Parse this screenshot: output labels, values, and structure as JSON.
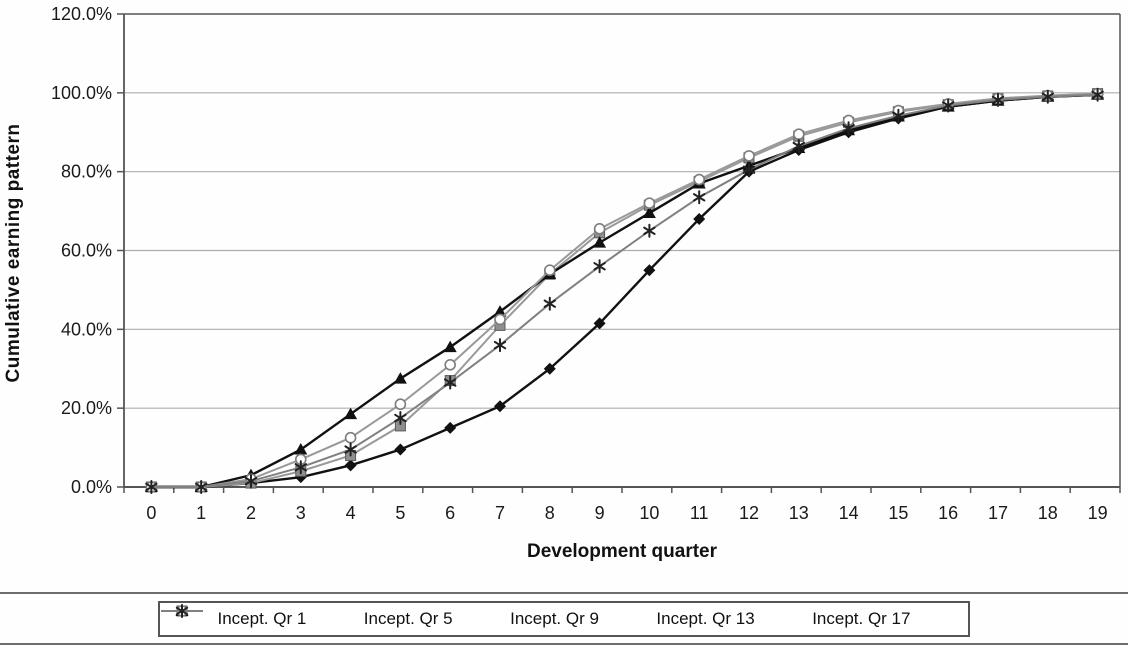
{
  "figure": {
    "background": "#fefefe",
    "text_color": "#1a1a1a",
    "gridline_color": "#adadad",
    "axis_color": "#555555"
  },
  "chart_data": {
    "type": "line",
    "title": "",
    "xlabel": "Development quarter",
    "ylabel": "Cumulative earning pattern",
    "categories": [
      0,
      1,
      2,
      3,
      4,
      5,
      6,
      7,
      8,
      9,
      10,
      11,
      12,
      13,
      14,
      15,
      16,
      17,
      18,
      19
    ],
    "x_tick_labels": [
      "0",
      "1",
      "2",
      "3",
      "4",
      "5",
      "6",
      "7",
      "8",
      "9",
      "10",
      "11",
      "12",
      "13",
      "14",
      "15",
      "16",
      "17",
      "18",
      "19"
    ],
    "y_tick_labels": [
      "0.0%",
      "20.0%",
      "40.0%",
      "60.0%",
      "80.0%",
      "100.0%",
      "120.0%"
    ],
    "ylim": [
      0,
      120
    ],
    "y_tick_step": 20,
    "y_unit": "percent",
    "grid": "horizontal",
    "legend_position": "bottom",
    "series": [
      {
        "name": "Incept. Qr 1",
        "marker": "diamond",
        "color": "#111111",
        "marker_fill": "#111111",
        "values": [
          0,
          0,
          1,
          2.5,
          5.5,
          9.5,
          15,
          20.5,
          30,
          41.5,
          55,
          68,
          80,
          85.5,
          90,
          93.5,
          96.5,
          98,
          99,
          99.5
        ]
      },
      {
        "name": "Incept. Qr 5",
        "marker": "square",
        "color": "#999999",
        "marker_fill": "#8f8f8f",
        "values": [
          0,
          0,
          1,
          4,
          8,
          15.5,
          27,
          41,
          54,
          64.5,
          71.5,
          77.5,
          83.5,
          89,
          92.5,
          95.2,
          97,
          98.5,
          99.2,
          99.8
        ]
      },
      {
        "name": "Incept. Qr 9",
        "marker": "triangle",
        "color": "#111111",
        "marker_fill": "#111111",
        "values": [
          0,
          0,
          3,
          9.5,
          18.5,
          27.5,
          35.5,
          44.5,
          54,
          62,
          69.5,
          77,
          81.5,
          86,
          90.5,
          94,
          96.5,
          98,
          99,
          99.5
        ]
      },
      {
        "name": "Incept. Qr 13",
        "marker": "circle",
        "color": "#999999",
        "marker_fill": "#ffffff",
        "values": [
          0,
          0,
          2,
          7,
          12.5,
          21,
          31,
          42.5,
          55,
          65.5,
          72,
          78,
          84,
          89.5,
          93,
          95.5,
          97.2,
          98.6,
          99.3,
          99.8
        ]
      },
      {
        "name": "Incept. Qr 17",
        "marker": "star",
        "color": "#808080",
        "marker_fill": "#222222",
        "values": [
          0,
          0,
          1.5,
          5,
          9.5,
          17.5,
          26.5,
          36,
          46.5,
          56,
          65,
          73.5,
          80.5,
          86.5,
          91,
          94.2,
          96.8,
          98.2,
          99,
          99.5
        ]
      }
    ]
  }
}
